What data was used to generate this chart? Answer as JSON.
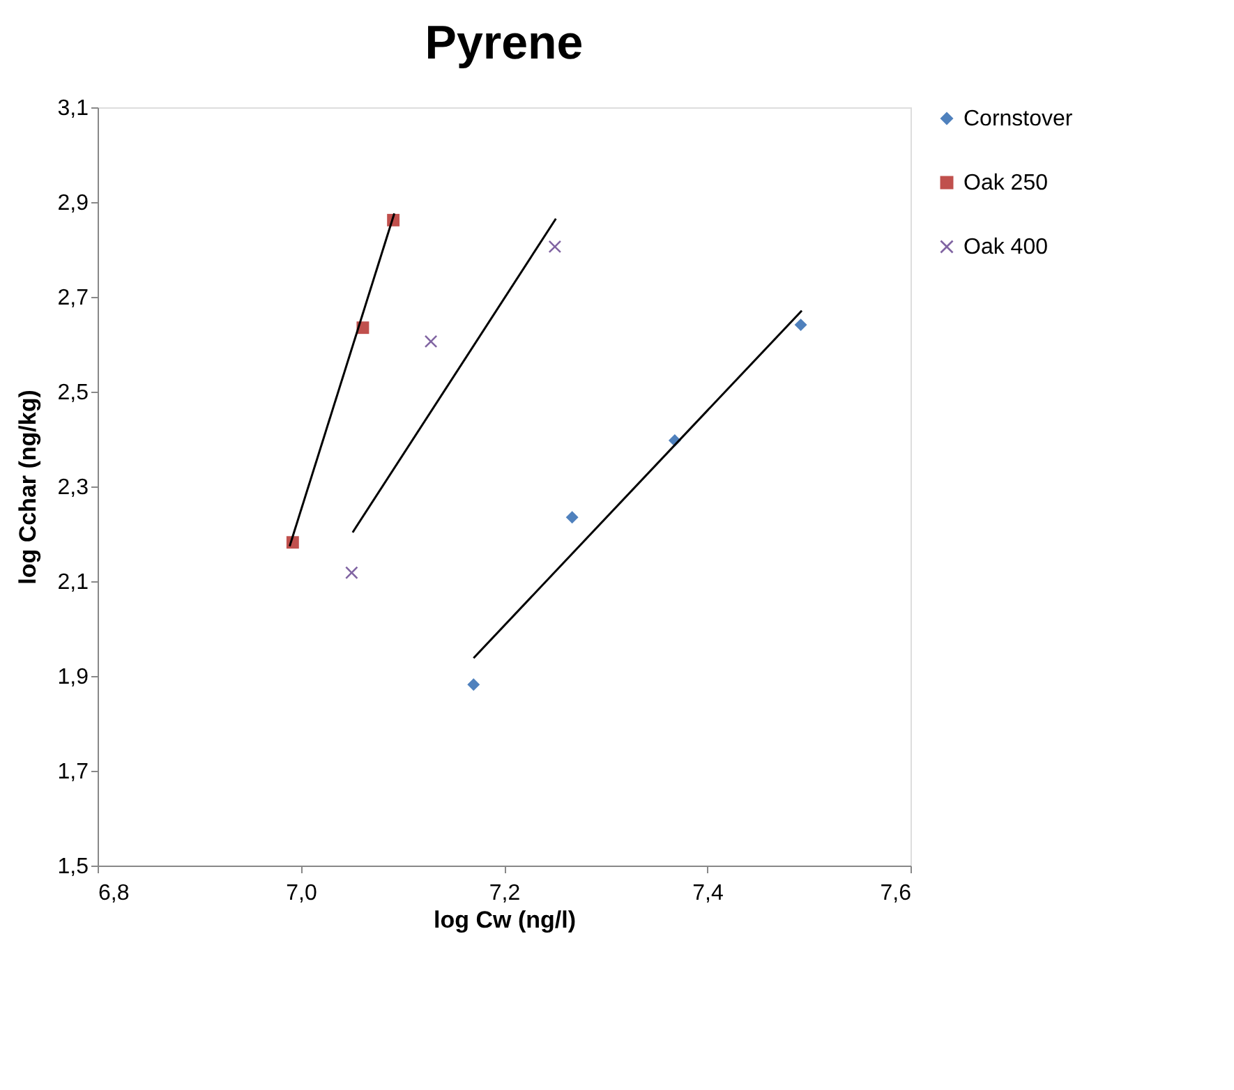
{
  "chart_data": {
    "type": "scatter",
    "title": "Pyrene",
    "xlabel": "log Cw (ng/l)",
    "ylabel": "log Cchar (ng/kg)",
    "xlim": [
      6.8,
      7.6
    ],
    "xticks": [
      {
        "value": 6.8,
        "label": "6,8"
      },
      {
        "value": 7.0,
        "label": "7,0"
      },
      {
        "value": 7.2,
        "label": "7,2"
      },
      {
        "value": 7.4,
        "label": "7,4"
      },
      {
        "value": 7.6,
        "label": "7,6"
      }
    ],
    "ylim": [
      1.5,
      3.1
    ],
    "yticks": [
      {
        "value": 1.5,
        "label": "1,5"
      },
      {
        "value": 1.7,
        "label": "1,7"
      },
      {
        "value": 1.9,
        "label": "1,9"
      },
      {
        "value": 2.1,
        "label": "2,1"
      },
      {
        "value": 2.3,
        "label": "2,3"
      },
      {
        "value": 2.5,
        "label": "2,5"
      },
      {
        "value": 2.7,
        "label": "2,7"
      },
      {
        "value": 2.9,
        "label": "2,9"
      },
      {
        "value": 3.1,
        "label": "3,1"
      }
    ],
    "grid": false,
    "legend": "right",
    "series": [
      {
        "name": "Cornstover",
        "color": "#4f81bd",
        "marker": "diamond",
        "x": [
          7.17,
          7.267,
          7.368,
          7.492
        ],
        "values": [
          1.882,
          2.235,
          2.397,
          2.641
        ]
      },
      {
        "name": "Oak 250",
        "color": "#c0504d",
        "marker": "square",
        "x": [
          6.992,
          7.061,
          7.091
        ],
        "values": [
          2.182,
          2.635,
          2.862
        ]
      },
      {
        "name": "Oak 400",
        "color": "#8064a2",
        "marker": "cross",
        "x": [
          7.05,
          7.128,
          7.25
        ],
        "values": [
          2.118,
          2.606,
          2.806
        ]
      },
      {
        "type": "line",
        "color": "#000000",
        "marker": "none",
        "x": [
          7.17,
          7.493
        ],
        "values": [
          1.938,
          2.671
        ]
      },
      {
        "type": "line",
        "color": "#000000",
        "marker": "none",
        "x": [
          6.989,
          7.092
        ],
        "values": [
          2.174,
          2.876
        ]
      },
      {
        "type": "line",
        "color": "#000000",
        "marker": "none",
        "x": [
          7.051,
          7.251
        ],
        "values": [
          2.203,
          2.865
        ]
      }
    ]
  }
}
